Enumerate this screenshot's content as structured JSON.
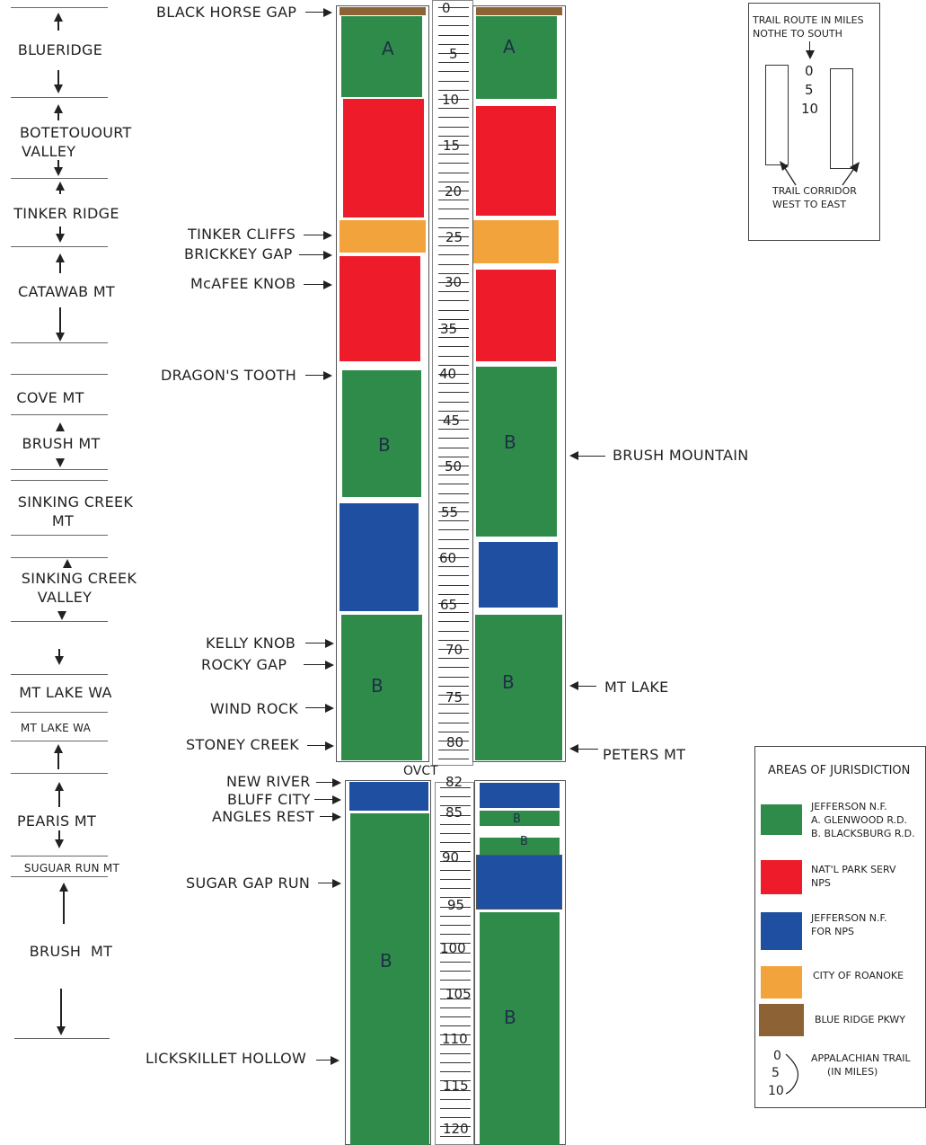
{
  "regions": {
    "blueridge": "BLUERIDGE",
    "botetourt_line1": "BOTETOUOURT",
    "botetourt_line2": "VALLEY",
    "tinker_ridge": "TINKER RIDGE",
    "catawba": "CATAWAB MT",
    "cove": "COVE MT",
    "brush1": "BRUSH MT",
    "sinking_mt_line1": "SINKING CREEK",
    "sinking_mt_line2": "MT",
    "sinking_valley_line1": "SINKING CREEK",
    "sinking_valley_line2": "VALLEY",
    "mt_lake_wa": "MT LAKE WA",
    "mt_lake_wa_small": "MT LAKE WA",
    "pearis": "PEARIS MT",
    "sugar_run": "SUGUAR RUN MT",
    "brush2": "BRUSH  MT"
  },
  "landmarks_left": {
    "black_horse_gap": "BLACK HORSE GAP",
    "tinker_cliffs": "TINKER CLIFFS",
    "brickkey_gap": "BRICKKEY GAP",
    "mcafee_knob": "McAFEE KNOB",
    "dragons_tooth": "DRAGON'S TOOTH",
    "kelly_knob": "KELLY KNOB",
    "rocky_gap": "ROCKY GAP",
    "wind_rock": "WIND ROCK",
    "stoney_creek": "STONEY CREEK",
    "new_river": "NEW RIVER",
    "bluff_city": "BLUFF CITY",
    "angles_rest": "ANGLES REST",
    "sugar_gap_run": "SUGAR GAP RUN",
    "lickskillet": "LICKSKILLET HOLLOW"
  },
  "landmarks_right": {
    "brush_mountain": "BRUSH MOUNTAIN",
    "mt_lake": "MT LAKE",
    "peters_mt": "PETERS MT"
  },
  "scale": {
    "ticks": [
      "0",
      "5",
      "10",
      "15",
      "20",
      "25",
      "30",
      "35",
      "40",
      "45",
      "50",
      "55",
      "60",
      "65",
      "70",
      "75",
      "80",
      "82",
      "85",
      "90",
      "95",
      "100",
      "105",
      "110",
      "115",
      "120"
    ],
    "ovct": "OVCT"
  },
  "block_letters": {
    "a": "A",
    "b": "B"
  },
  "route_box": {
    "line1": "TRAIL ROUTE IN MILES",
    "line2": "NOTHE TO SOUTH",
    "n0": "0",
    "n5": "5",
    "n10": "10",
    "corridor_line1": "TRAIL CORRIDOR",
    "corridor_line2": "WEST TO EAST"
  },
  "legend": {
    "title": "AREAS OF JURISDICTION",
    "jefferson_line1": "JEFFERSON N.F.",
    "jefferson_line2": "A. GLENWOOD R.D.",
    "jefferson_line3": "B. BLACKSBURG R.D.",
    "nps_line1": "NAT'L PARK SERV",
    "nps_line2": "NPS",
    "jnf_nps_line1": "JEFFERSON N.F.",
    "jnf_nps_line2": "FOR NPS",
    "roanoke": "CITY OF ROANOKE",
    "pkwy": "BLUE RIDGE PKWY",
    "at_line1": "APPALACHIAN TRAIL",
    "at_line2": "(IN MILES)",
    "at_n0": "0",
    "at_n5": "5",
    "at_n10": "10"
  },
  "colors": {
    "jefferson": "#2e8b4a",
    "nps": "#ee1c2b",
    "jnf_nps": "#1f4fa0",
    "roanoke": "#f3a33c",
    "pkwy": "#8d6235"
  }
}
